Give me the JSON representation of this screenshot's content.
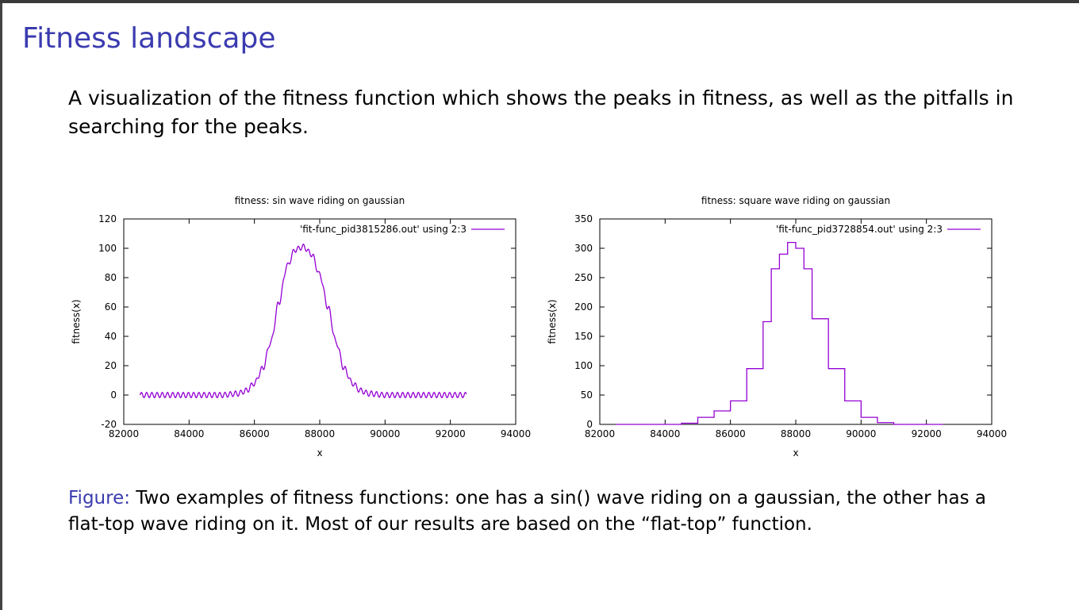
{
  "slide": {
    "title": "Fitness landscape",
    "intro": "A visualization of the fitness function which shows the peaks in fitness, as well as the pitfalls in searching for the peaks.",
    "caption_label": "Figure:",
    "caption_text": "Two examples of fitness functions: one has a sin() wave riding on a gaussian, the other has a flat-top wave riding on it. Most of our results are based on the “flat-top” function."
  },
  "colors": {
    "title": "#3b3bb0",
    "series": "#9400d3",
    "axis": "#000000"
  },
  "chart_data": [
    {
      "type": "line",
      "title": "fitness: sin wave riding on gaussian",
      "xlabel": "x",
      "ylabel": "fitness(x)",
      "xlim": [
        82000,
        94000
      ],
      "ylim": [
        -20,
        120
      ],
      "xticks": [
        "82000",
        "84000",
        "86000",
        "88000",
        "90000",
        "92000",
        "94000"
      ],
      "yticks": [
        "-20",
        "0",
        "20",
        "40",
        "60",
        "80",
        "100",
        "120"
      ],
      "grid": false,
      "legend_position": "top-right",
      "series": [
        {
          "name": "'fit-func_pid3815286.out' using 2:3",
          "x": [
            82500,
            83000,
            83500,
            84000,
            84500,
            85000,
            85500,
            85750,
            86000,
            86250,
            86500,
            86750,
            87000,
            87250,
            87500,
            87750,
            88000,
            88250,
            88500,
            88750,
            89000,
            89250,
            89500,
            90000,
            90500,
            91000,
            91500,
            92000,
            92500
          ],
          "y": [
            0,
            0,
            0,
            0,
            0,
            0,
            1,
            3,
            8,
            18,
            36,
            63,
            88,
            99,
            101,
            96,
            82,
            60,
            36,
            18,
            8,
            3,
            1,
            0,
            0,
            0,
            0,
            0,
            0
          ]
        }
      ]
    },
    {
      "type": "line",
      "title": "fitness: square wave riding on gaussian",
      "xlabel": "x",
      "ylabel": "fitness(x)",
      "xlim": [
        82000,
        94000
      ],
      "ylim": [
        0,
        350
      ],
      "xticks": [
        "82000",
        "84000",
        "86000",
        "88000",
        "90000",
        "92000",
        "94000"
      ],
      "yticks": [
        "0",
        "50",
        "100",
        "150",
        "200",
        "250",
        "300",
        "350"
      ],
      "grid": false,
      "legend_position": "top-right",
      "series": [
        {
          "name": "'fit-func_pid3728854.out' using 2:3",
          "x": [
            82500,
            84000,
            84500,
            85000,
            85500,
            86000,
            86500,
            87000,
            87250,
            87500,
            87750,
            88000,
            88250,
            88500,
            89000,
            89500,
            90000,
            90500,
            91000,
            92500
          ],
          "y": [
            0,
            0,
            2,
            12,
            23,
            40,
            95,
            175,
            265,
            290,
            310,
            300,
            265,
            180,
            95,
            40,
            12,
            3,
            0,
            0
          ]
        }
      ]
    }
  ]
}
